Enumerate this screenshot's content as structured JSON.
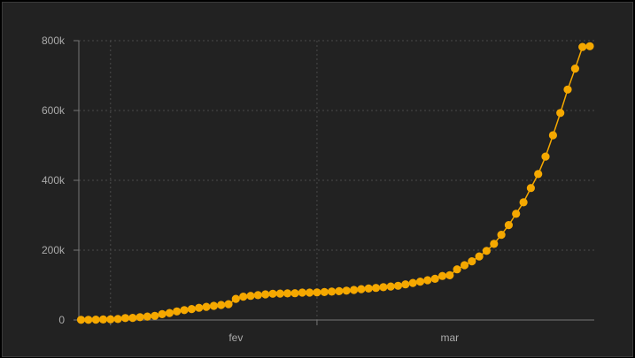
{
  "colors": {
    "background": "#222222",
    "series": "#f5a800",
    "grid": "#4a4a4a",
    "axis": "#777777",
    "tick_text": "#aaaaaa"
  },
  "chart_data": {
    "type": "line",
    "title": "",
    "xlabel": "",
    "ylabel": "",
    "x_axis": {
      "type": "date",
      "range": [
        "2020-01-22",
        "2020-03-31"
      ]
    },
    "ylim": [
      0,
      800000
    ],
    "yticks": [
      {
        "value": 0,
        "label": "0"
      },
      {
        "value": 200000,
        "label": "200k"
      },
      {
        "value": 400000,
        "label": "400k"
      },
      {
        "value": 600000,
        "label": "600k"
      },
      {
        "value": 800000,
        "label": "800k"
      }
    ],
    "xticks": [
      {
        "value": "2020-02-01",
        "label": "fev"
      },
      {
        "value": "2020-03-01",
        "label": "mar"
      }
    ],
    "grid": true,
    "markers": true,
    "series": [
      {
        "x": [
          "2020-01-22",
          "2020-01-23",
          "2020-01-24",
          "2020-01-25",
          "2020-01-26",
          "2020-01-27",
          "2020-01-28",
          "2020-01-29",
          "2020-01-30",
          "2020-01-31",
          "2020-02-01",
          "2020-02-02",
          "2020-02-03",
          "2020-02-04",
          "2020-02-05",
          "2020-02-06",
          "2020-02-07",
          "2020-02-08",
          "2020-02-09",
          "2020-02-10",
          "2020-02-11",
          "2020-02-12",
          "2020-02-13",
          "2020-02-14",
          "2020-02-15",
          "2020-02-16",
          "2020-02-17",
          "2020-02-18",
          "2020-02-19",
          "2020-02-20",
          "2020-02-21",
          "2020-02-22",
          "2020-02-23",
          "2020-02-24",
          "2020-02-25",
          "2020-02-26",
          "2020-02-27",
          "2020-02-28",
          "2020-02-29",
          "2020-03-01",
          "2020-03-02",
          "2020-03-03",
          "2020-03-04",
          "2020-03-05",
          "2020-03-06",
          "2020-03-07",
          "2020-03-08",
          "2020-03-09",
          "2020-03-10",
          "2020-03-11",
          "2020-03-12",
          "2020-03-13",
          "2020-03-14",
          "2020-03-15",
          "2020-03-16",
          "2020-03-17",
          "2020-03-18",
          "2020-03-19",
          "2020-03-20",
          "2020-03-21",
          "2020-03-22",
          "2020-03-23",
          "2020-03-24",
          "2020-03-25",
          "2020-03-26",
          "2020-03-27",
          "2020-03-28",
          "2020-03-29",
          "2020-03-30",
          "2020-03-31"
        ],
        "y": [
          500,
          600,
          900,
          1400,
          2100,
          2900,
          5500,
          6100,
          8200,
          9800,
          11900,
          16800,
          19900,
          24500,
          28300,
          31500,
          34900,
          37600,
          40600,
          43100,
          45200,
          60400,
          66900,
          69000,
          71200,
          73300,
          75200,
          75700,
          76200,
          76800,
          78600,
          78600,
          79000,
          80100,
          81300,
          82600,
          84000,
          86000,
          88400,
          90000,
          92000,
          94000,
          96000,
          98000,
          102000,
          106000,
          110000,
          114000,
          118000,
          126000,
          128000,
          145000,
          157000,
          168000,
          182000,
          198000,
          218000,
          244000,
          272000,
          304000,
          337000,
          378000,
          418000,
          468000,
          529000,
          593000,
          660000,
          720000,
          782000,
          784000
        ]
      }
    ]
  }
}
